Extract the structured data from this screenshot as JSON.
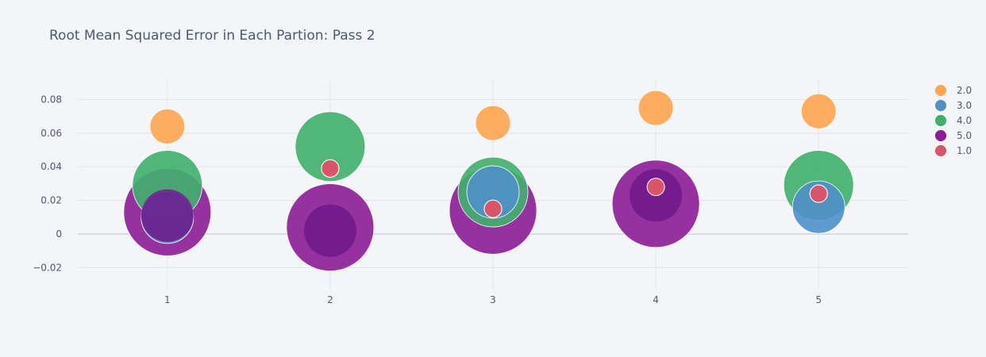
{
  "chart_data": {
    "type": "scatter",
    "title": "Root Mean Squared Error in Each Partion: Pass 2",
    "xlabel": "",
    "ylabel": "",
    "x_ticks": [
      1,
      2,
      3,
      4,
      5
    ],
    "y_ticks": [
      -0.02,
      0,
      0.02,
      0.04,
      0.06,
      0.08
    ],
    "y_tick_labels": [
      "−0.02",
      "0",
      "0.02",
      "0.04",
      "0.06",
      "0.08"
    ],
    "xlim": [
      0.45,
      5.55
    ],
    "ylim": [
      -0.033,
      0.092
    ],
    "grid": true,
    "legend_placement": "top-right",
    "series": [
      {
        "name": "2.0",
        "color": "#ffa54e",
        "x": [
          1,
          3,
          4,
          5
        ],
        "y": [
          0.064,
          0.066,
          0.075,
          0.073
        ],
        "size": [
          2.0,
          2.0,
          2.0,
          2.0
        ]
      },
      {
        "name": "3.0",
        "color": "#4f90c9",
        "x": [
          1,
          3,
          5
        ],
        "y": [
          0.01,
          0.025,
          0.016
        ],
        "size": [
          3.0,
          3.0,
          3.0
        ]
      },
      {
        "name": "4.0",
        "color": "#3fb06a",
        "x": [
          1,
          2,
          3,
          5
        ],
        "y": [
          0.029,
          0.052,
          0.025,
          0.029
        ],
        "size": [
          4.0,
          4.0,
          4.0,
          4.0
        ]
      },
      {
        "name": "5.0",
        "color": "#8c1d96",
        "x": [
          1,
          2,
          3,
          4
        ],
        "y": [
          0.013,
          0.004,
          0.014,
          0.018
        ],
        "size": [
          5.0,
          5.0,
          5.0,
          5.0
        ]
      },
      {
        "name": "1.0",
        "color": "#d9556a",
        "x": [
          2,
          3,
          4,
          5
        ],
        "y": [
          0.039,
          0.015,
          0.028,
          0.024
        ],
        "size": [
          1.0,
          1.0,
          1.0,
          1.0
        ]
      }
    ],
    "inner_markers": [
      {
        "x": 1,
        "y": 0.011,
        "size": 3.0,
        "color": "#6e1789"
      },
      {
        "x": 2,
        "y": 0.002,
        "size": 3.0,
        "color": "#6e1789"
      },
      {
        "x": 4,
        "y": 0.023,
        "size": 3.0,
        "color": "#6e1789"
      }
    ]
  }
}
